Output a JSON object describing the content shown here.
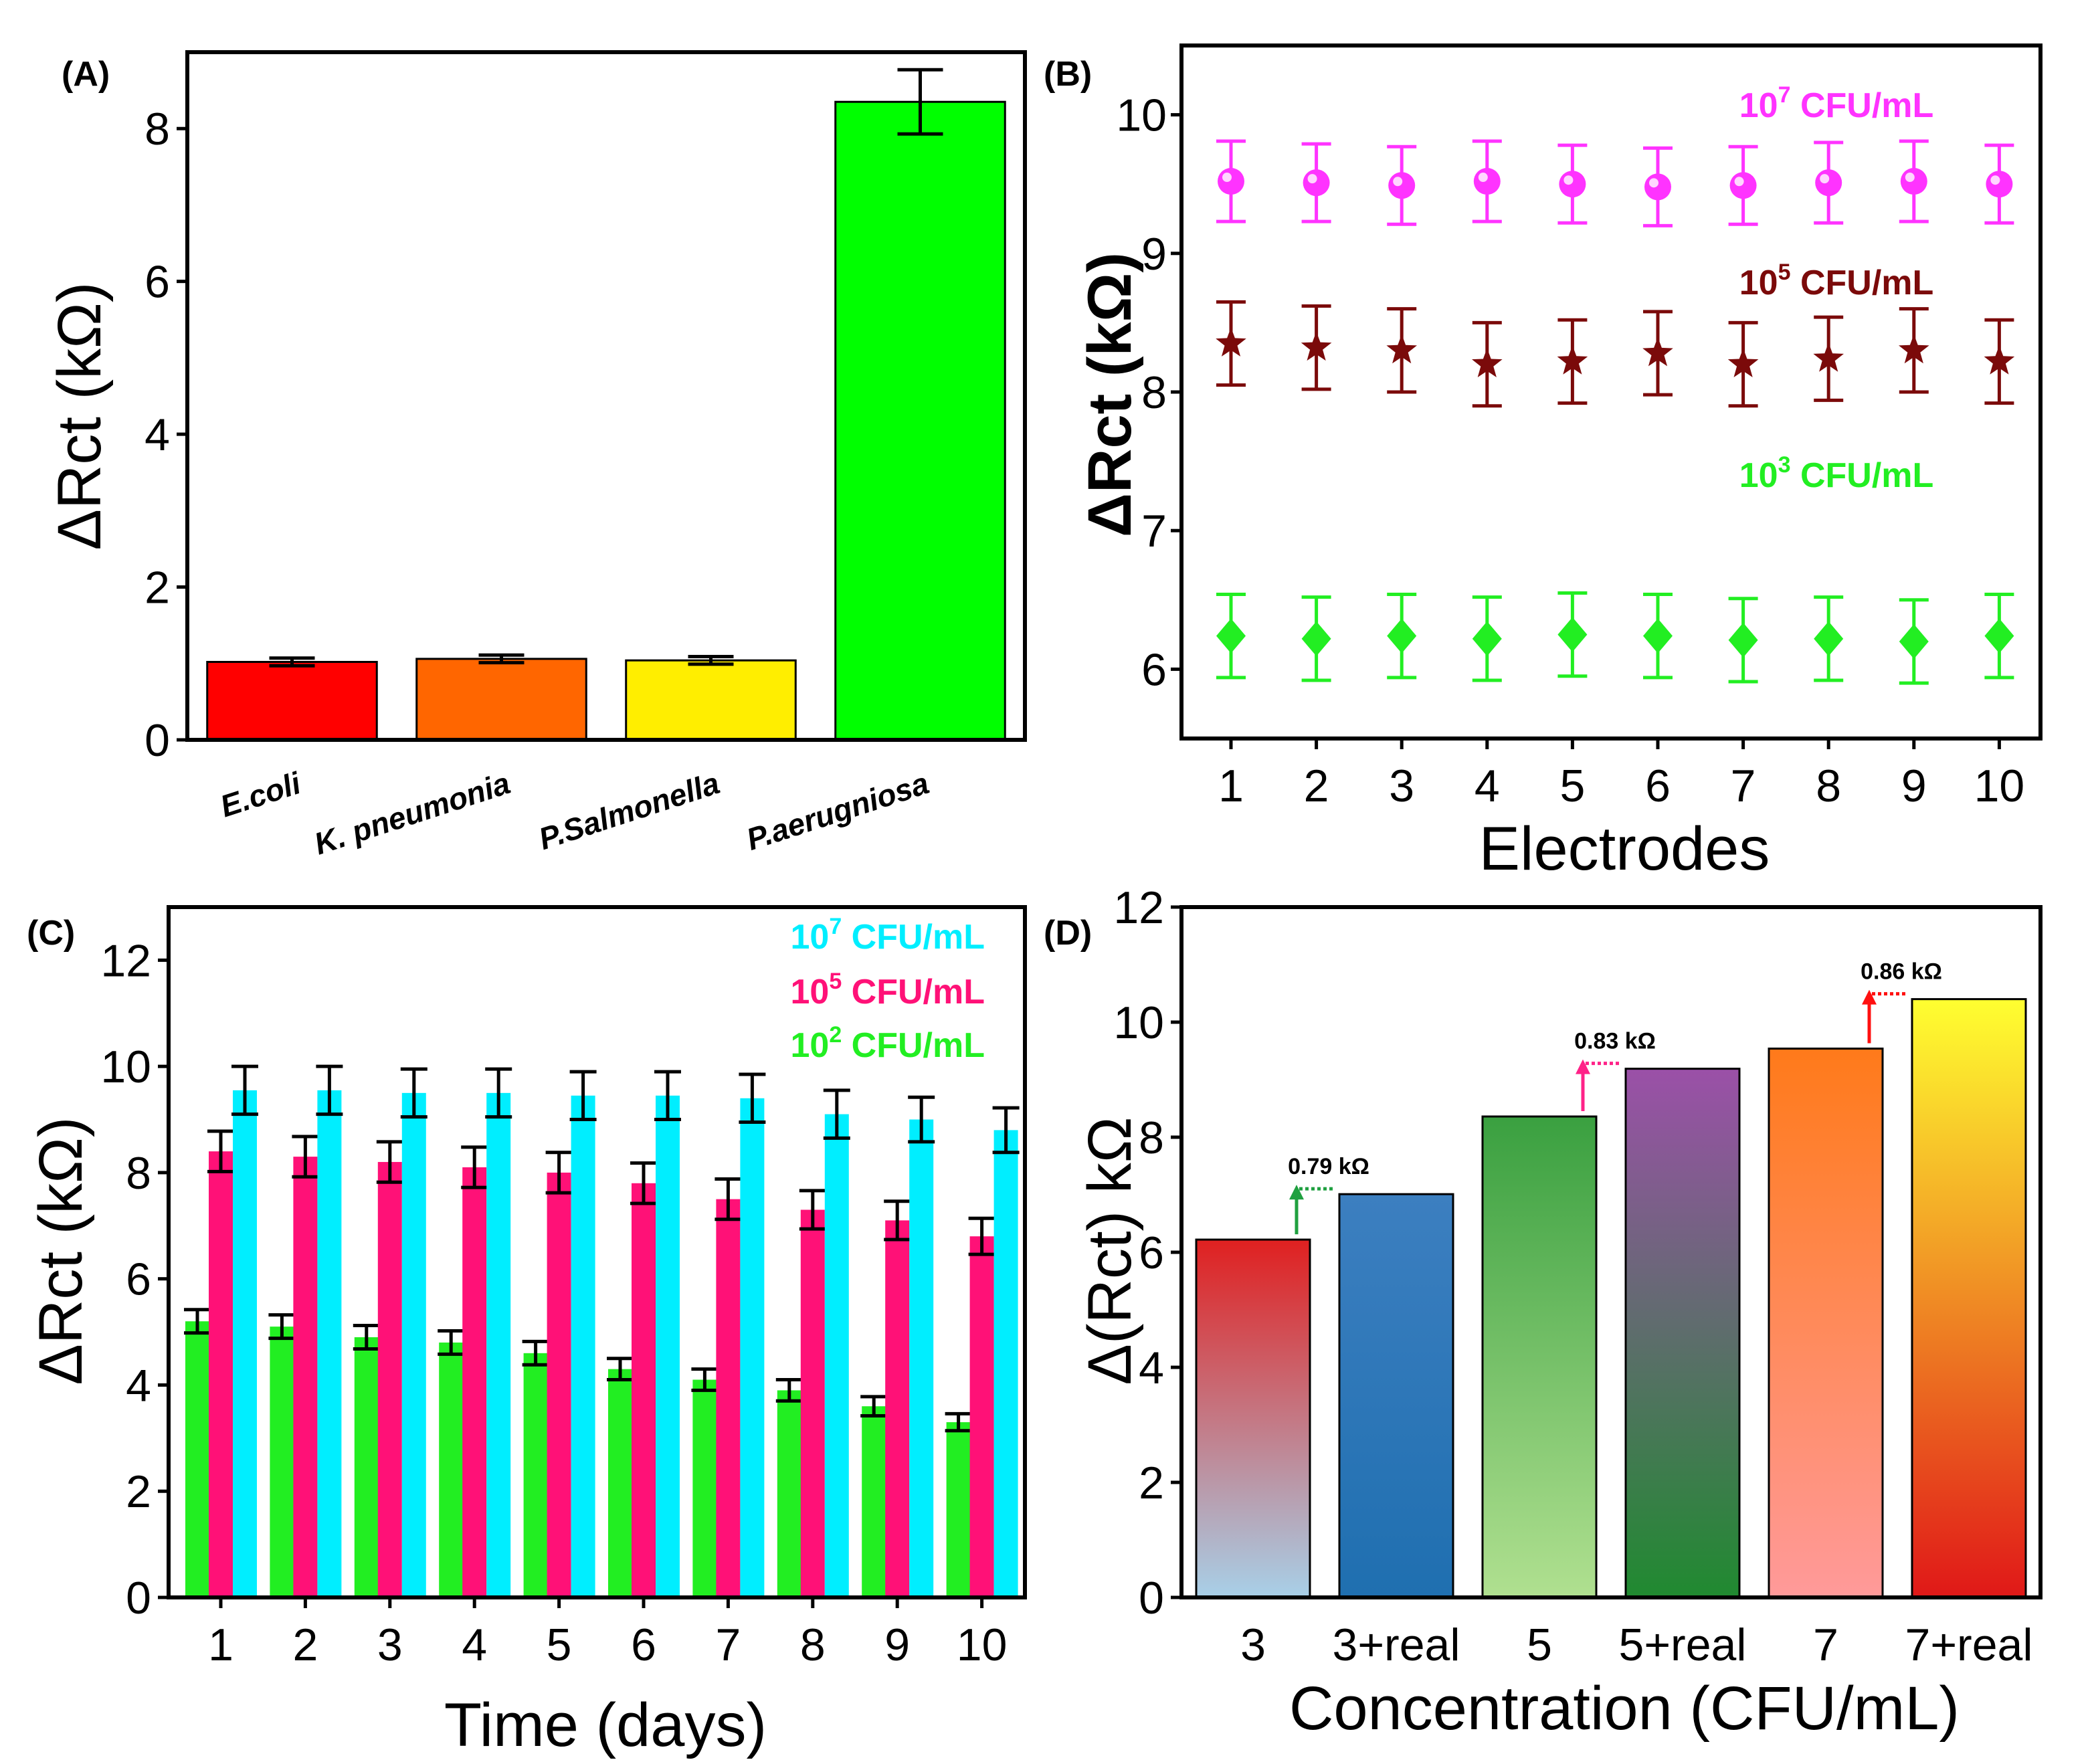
{
  "panels": {
    "A": {
      "label": "(A)"
    },
    "B": {
      "label": "(B)"
    },
    "C": {
      "label": "(C)"
    },
    "D": {
      "label": "(D)"
    }
  },
  "chart_data": [
    {
      "id": "A",
      "type": "bar",
      "ylabel": "ΔRct (kΩ)",
      "xlabel": "",
      "ylim": [
        0,
        9
      ],
      "yticks": [
        0,
        2,
        4,
        6,
        8
      ],
      "categories": [
        "E.coli",
        "K. pneumonia",
        "P.Salmonella",
        "P.aerugniosa"
      ],
      "values": [
        1.02,
        1.06,
        1.04,
        8.35
      ],
      "errors": [
        0.05,
        0.05,
        0.05,
        0.42
      ],
      "colors": [
        "#ff0000",
        "#ff6600",
        "#ffee00",
        "#00ff00"
      ]
    },
    {
      "id": "B",
      "type": "scatter",
      "ylabel": "ΔRct (kΩ)",
      "xlabel": "Electrodes",
      "ylim": [
        5.5,
        10.5
      ],
      "yticks": [
        6,
        7,
        8,
        9,
        10
      ],
      "x": [
        1,
        2,
        3,
        4,
        5,
        6,
        7,
        8,
        9,
        10
      ],
      "series": [
        {
          "name": "10⁷ CFU/mL",
          "legend_base": "10",
          "legend_exp": "7",
          "legend_unit": " CFU/mL",
          "marker": "circle",
          "color": "#ff33ff",
          "values": [
            9.52,
            9.51,
            9.49,
            9.52,
            9.5,
            9.48,
            9.49,
            9.51,
            9.52,
            9.5
          ],
          "errors": [
            0.29,
            0.28,
            0.28,
            0.29,
            0.28,
            0.28,
            0.28,
            0.29,
            0.29,
            0.28
          ]
        },
        {
          "name": "10⁵ CFU/mL",
          "legend_base": "10",
          "legend_exp": "5",
          "legend_unit": " CFU/mL",
          "marker": "star",
          "color": "#7b0a0a",
          "values": [
            8.35,
            8.32,
            8.3,
            8.2,
            8.22,
            8.28,
            8.2,
            8.24,
            8.3,
            8.22
          ],
          "errors": [
            0.3,
            0.3,
            0.3,
            0.3,
            0.3,
            0.3,
            0.3,
            0.3,
            0.3,
            0.3
          ]
        },
        {
          "name": "10³ CFU/mL",
          "legend_base": "10",
          "legend_exp": "3",
          "legend_unit": " CFU/mL",
          "marker": "diamond",
          "color": "#22ee22",
          "values": [
            6.24,
            6.22,
            6.24,
            6.22,
            6.25,
            6.24,
            6.21,
            6.22,
            6.2,
            6.24
          ],
          "errors": [
            0.3,
            0.3,
            0.3,
            0.3,
            0.3,
            0.3,
            0.3,
            0.3,
            0.3,
            0.3
          ]
        }
      ]
    },
    {
      "id": "C",
      "type": "bar",
      "ylabel": "ΔRct (kΩ)",
      "xlabel": "Time (days)",
      "ylim": [
        0,
        13
      ],
      "yticks": [
        0,
        2,
        4,
        6,
        8,
        10,
        12
      ],
      "categories": [
        "1",
        "2",
        "3",
        "4",
        "5",
        "6",
        "7",
        "8",
        "9",
        "10"
      ],
      "series": [
        {
          "name": "10² CFU/mL",
          "legend_base": "10",
          "legend_exp": "2",
          "legend_unit": " CFU/mL",
          "color": "#22ee22",
          "values": [
            5.2,
            5.1,
            4.9,
            4.8,
            4.6,
            4.3,
            4.1,
            3.9,
            3.6,
            3.3
          ],
          "errors": [
            0.22,
            0.22,
            0.22,
            0.22,
            0.22,
            0.2,
            0.2,
            0.2,
            0.18,
            0.16
          ]
        },
        {
          "name": "10⁵ CFU/mL",
          "legend_base": "10",
          "legend_exp": "5",
          "legend_unit": " CFU/mL",
          "color": "#ff1177",
          "values": [
            8.4,
            8.3,
            8.2,
            8.1,
            8.0,
            7.8,
            7.5,
            7.3,
            7.1,
            6.8
          ],
          "errors": [
            0.38,
            0.38,
            0.38,
            0.38,
            0.38,
            0.38,
            0.38,
            0.36,
            0.36,
            0.34
          ]
        },
        {
          "name": "10⁷ CFU/mL",
          "legend_base": "10",
          "legend_exp": "7",
          "legend_unit": " CFU/mL",
          "color": "#00eeff",
          "values": [
            9.55,
            9.55,
            9.5,
            9.5,
            9.45,
            9.45,
            9.4,
            9.1,
            9.0,
            8.8
          ],
          "errors": [
            0.45,
            0.45,
            0.45,
            0.45,
            0.45,
            0.45,
            0.45,
            0.45,
            0.42,
            0.42
          ]
        }
      ]
    },
    {
      "id": "D",
      "type": "bar",
      "ylabel": "Δ(Rct) kΩ",
      "xlabel": "Concentration (CFU/mL)",
      "ylim": [
        0,
        12
      ],
      "yticks": [
        0,
        2,
        4,
        6,
        8,
        10,
        12
      ],
      "categories": [
        "3",
        "3+real",
        "5",
        "5+real",
        "7",
        "7+real"
      ],
      "values": [
        6.22,
        7.01,
        8.36,
        9.19,
        9.54,
        10.4
      ],
      "gradients": [
        [
          "#e02020",
          "#a8d0e8"
        ],
        [
          "#3c7fc0",
          "#1f6fb0"
        ],
        [
          "#3aa040",
          "#b0e090"
        ],
        [
          "#9b50a8",
          "#208a30"
        ],
        [
          "#ff7a1a",
          "#ff9a9a"
        ],
        [
          "#ffff30",
          "#e01818"
        ]
      ],
      "annotations": [
        {
          "text": "0.79 kΩ",
          "from": 6.22,
          "to": 7.01,
          "color": "#20a040"
        },
        {
          "text": "0.83 kΩ",
          "from": 8.36,
          "to": 9.19,
          "color": "#ff2288"
        },
        {
          "text": "0.86 kΩ",
          "from": 9.54,
          "to": 10.4,
          "color": "#ff1010"
        }
      ]
    }
  ]
}
